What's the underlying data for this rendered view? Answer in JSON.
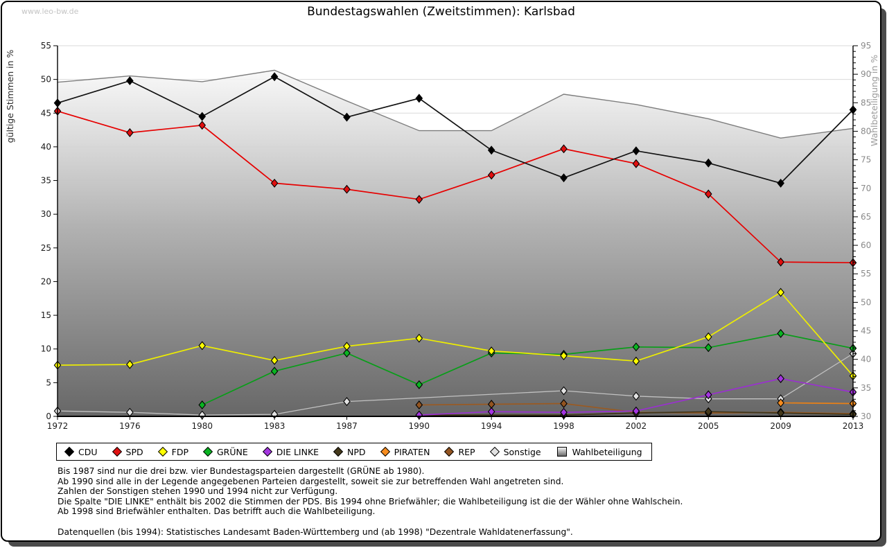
{
  "watermark": "www.leo-bw.de",
  "title": "Bundestagswahlen (Zweitstimmen): Karlsbad",
  "axes": {
    "left_label": "gültige Stimmen in %",
    "right_label": "Wahlbeteiligung in %",
    "left_range": [
      0,
      55
    ],
    "right_range": [
      30,
      95
    ],
    "left_tick_step": 5,
    "right_tick_step": 5,
    "right_minor_tick_step": 1
  },
  "chart_data": {
    "type": "line",
    "title": "Bundestagswahlen (Zweitstimmen): Karlsbad",
    "x": [
      1972,
      1976,
      1980,
      1983,
      1987,
      1990,
      1994,
      1998,
      2002,
      2005,
      2009,
      2013
    ],
    "xlabel": "",
    "ylabel_left": "gültige Stimmen in %",
    "ylabel_right": "Wahlbeteiligung in %",
    "ylim_left": [
      0,
      55
    ],
    "ylim_right": [
      30,
      95
    ],
    "grid": true,
    "legend_position": "bottom",
    "series": [
      {
        "name": "CDU",
        "axis": "left",
        "style": "line-diamond",
        "line_color": "#111111",
        "marker_color": "#000000",
        "values": [
          46.5,
          49.8,
          44.5,
          50.4,
          44.4,
          47.2,
          39.5,
          35.4,
          39.4,
          37.6,
          34.6,
          45.5
        ]
      },
      {
        "name": "SPD",
        "axis": "left",
        "style": "line-diamond",
        "line_color": "#e60000",
        "marker_color": "#e01010",
        "values": [
          45.3,
          42.1,
          43.2,
          34.6,
          33.7,
          32.2,
          35.8,
          39.7,
          37.5,
          33.0,
          22.9,
          22.8
        ]
      },
      {
        "name": "FDP",
        "axis": "left",
        "style": "line-diamond",
        "line_color": "#eeee00",
        "marker_color": "#ffff00",
        "values": [
          7.6,
          7.7,
          10.5,
          8.3,
          10.4,
          11.6,
          9.7,
          9.0,
          8.2,
          11.8,
          18.4,
          6.0
        ]
      },
      {
        "name": "GRÜNE",
        "axis": "left",
        "style": "line-diamond",
        "line_color": "#089e18",
        "marker_color": "#0ab422",
        "values": [
          null,
          null,
          1.7,
          6.7,
          9.4,
          4.7,
          9.4,
          9.2,
          10.3,
          10.2,
          12.3,
          10.1
        ]
      },
      {
        "name": "DIE LINKE",
        "axis": "left",
        "style": "line-diamond",
        "line_color": "#9a30d0",
        "marker_color": "#a435e0",
        "values": [
          null,
          null,
          null,
          null,
          null,
          0.2,
          0.7,
          0.6,
          0.8,
          3.2,
          5.6,
          3.6
        ]
      },
      {
        "name": "NPD",
        "axis": "left",
        "style": "line-diamond",
        "line_color": "#3f3418",
        "marker_color": "#44391b",
        "values": [
          null,
          null,
          null,
          null,
          null,
          0.2,
          null,
          0.2,
          0.5,
          0.7,
          0.5,
          0.3
        ]
      },
      {
        "name": "PIRATEN",
        "axis": "left",
        "style": "line-diamond",
        "line_color": "#e98016",
        "marker_color": "#f78c1e",
        "values": [
          null,
          null,
          null,
          null,
          null,
          null,
          null,
          null,
          null,
          null,
          2.0,
          1.9
        ]
      },
      {
        "name": "REP",
        "axis": "left",
        "style": "line-diamond",
        "line_color": "#9a5a22",
        "marker_color": "#935420",
        "values": [
          null,
          null,
          null,
          null,
          null,
          1.7,
          1.8,
          1.9,
          0.6,
          0.5,
          0.6,
          0.4
        ]
      },
      {
        "name": "Sonstige",
        "axis": "left",
        "style": "line-diamond",
        "line_color": "#c2c2c2",
        "marker_color": "#e2e2e2",
        "values": [
          0.8,
          0.6,
          0.2,
          0.3,
          2.2,
          null,
          null,
          3.8,
          3.0,
          2.6,
          2.6,
          9.3
        ]
      },
      {
        "name": "Wahlbeteiligung",
        "axis": "right",
        "style": "area",
        "line_color": "#7d7d7d",
        "marker_color": "#b0b0b0",
        "values": [
          88.6,
          89.7,
          88.7,
          90.7,
          85.3,
          80.1,
          80.1,
          86.5,
          84.7,
          82.2,
          78.8,
          80.5
        ]
      }
    ]
  },
  "legend": {
    "items": [
      {
        "label": "CDU",
        "marker": "diamond",
        "color": "#000000"
      },
      {
        "label": "SPD",
        "marker": "diamond",
        "color": "#e01010"
      },
      {
        "label": "FDP",
        "marker": "diamond",
        "color": "#ffff00"
      },
      {
        "label": "GRÜNE",
        "marker": "diamond",
        "color": "#0ab422"
      },
      {
        "label": "DIE LINKE",
        "marker": "diamond",
        "color": "#a435e0"
      },
      {
        "label": "NPD",
        "marker": "diamond",
        "color": "#44391b"
      },
      {
        "label": "PIRATEN",
        "marker": "diamond",
        "color": "#f78c1e"
      },
      {
        "label": "REP",
        "marker": "diamond",
        "color": "#935420"
      },
      {
        "label": "Sonstige",
        "marker": "diamond",
        "color": "#e2e2e2"
      },
      {
        "label": "Wahlbeteiligung",
        "marker": "gradient-square",
        "color": "#aaaaaa"
      }
    ]
  },
  "footnotes": [
    "Bis 1987 sind nur die drei bzw. vier Bundestagsparteien dargestellt (GRÜNE ab 1980).",
    "Ab 1990 sind alle in der Legende angegebenen Parteien dargestellt, soweit sie zur betreffenden Wahl angetreten sind.",
    "Zahlen der Sonstigen stehen 1990 und 1994 nicht zur Verfügung.",
    "Die Spalte \"DIE LINKE\" enthält bis 2002 die Stimmen der PDS. Bis 1994 ohne Briefwähler; die Wahlbeteiligung ist die der Wähler ohne Wahlschein.",
    "Ab 1998 sind Briefwähler enthalten. Das betrifft auch die Wahlbeteiligung."
  ],
  "source_note": "Datenquellen (bis 1994): Statistisches Landesamt Baden-Württemberg und (ab 1998) \"Dezentrale Wahldatenerfassung\".",
  "colors": {
    "grid": "#d9d9d9",
    "left_tick_label": "#1a1a1a",
    "right_tick_label": "#8a8a8a",
    "left_axis_title": "#2a2a2a",
    "right_axis_title": "#9a9a9a",
    "axis_line": "#000000",
    "area_top": "#f7f7f7",
    "area_mid": "#b2b2b2",
    "area_bottom": "#676767",
    "frame_shadow": "#4b4b4b",
    "watermark": "#c4c4c4"
  }
}
